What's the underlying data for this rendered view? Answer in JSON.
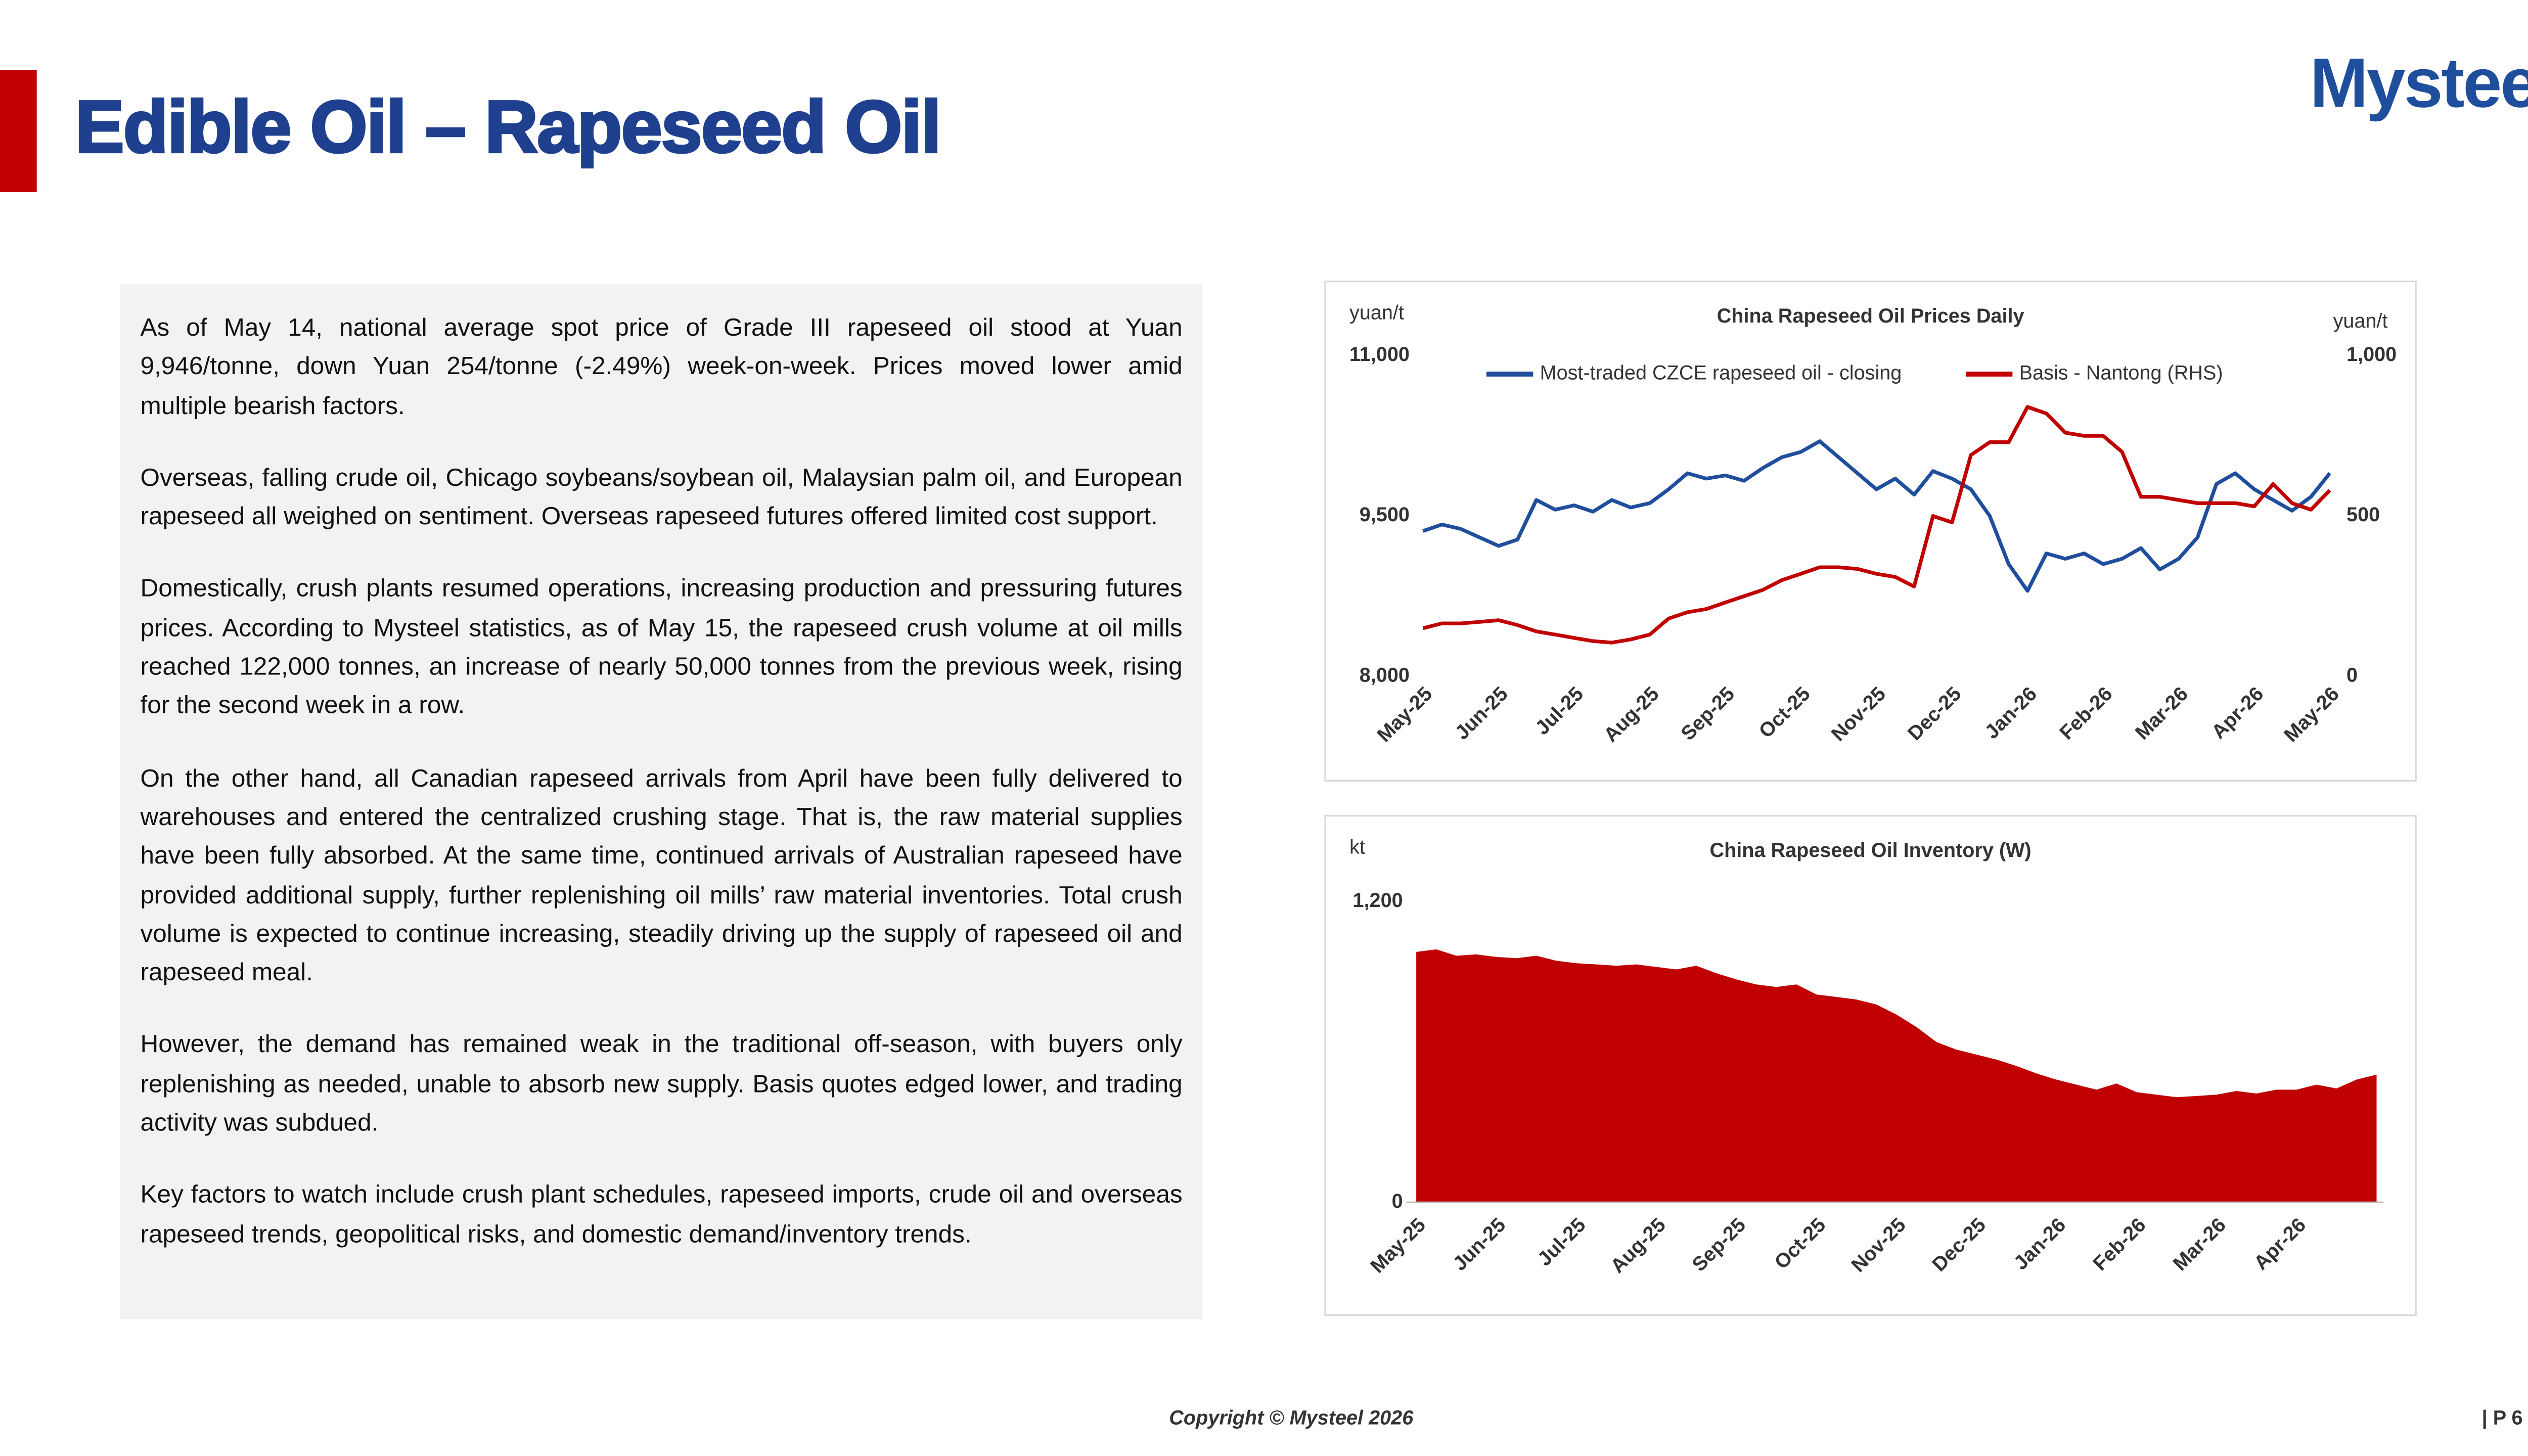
{
  "header": {
    "title": "Edible Oil – Rapeseed Oil",
    "logo": "Mysteel"
  },
  "body": {
    "paragraphs": [
      "As of May 14, national average spot price of Grade III rapeseed oil stood at Yuan 9,946/tonne, down Yuan 254/tonne (-2.49%) week-on-week. Prices moved lower amid multiple bearish factors.",
      "Overseas, falling crude oil, Chicago soybeans/soybean oil, Malaysian palm oil, and European rapeseed all weighed on sentiment. Overseas rapeseed futures offered limited cost support.",
      "Domestically, crush plants resumed operations, increasing production and pressuring futures prices. According to Mysteel statistics, as of May 15, the rapeseed crush volume at oil mills reached 122,000 tonnes, an increase of nearly 50,000 tonnes from the previous week, rising for the second week in a row.",
      "On the other hand, all Canadian rapeseed arrivals from April have been fully delivered to warehouses and entered the centralized crushing stage. That is, the raw material supplies have been fully absorbed. At the same time, continued arrivals of Australian rapeseed have provided additional supply, further replenishing oil mills’ raw material inventories. Total crush volume is expected to continue increasing, steadily driving up the supply of rapeseed oil and rapeseed meal.",
      "However, the demand has remained weak in the traditional off-season, with buyers only replenishing as needed, unable to absorb new supply. Basis quotes edged lower, and trading activity was subdued.",
      "Key factors to watch include crush plant schedules, rapeseed imports, crude oil and overseas rapeseed trends, geopolitical risks, and domestic demand/inventory trends."
    ]
  },
  "chart_data": [
    {
      "type": "line",
      "title": "China Rapeseed Oil Prices Daily",
      "ylabel": "yuan/t",
      "y2label": "yuan/t",
      "x": [
        "May-25",
        null,
        null,
        null,
        "Jun-25",
        null,
        null,
        null,
        "Jul-25",
        null,
        null,
        null,
        "Aug-25",
        null,
        null,
        null,
        "Sep-25",
        null,
        null,
        null,
        "Oct-25",
        null,
        null,
        null,
        "Nov-25",
        null,
        null,
        null,
        "Dec-25",
        null,
        null,
        null,
        "Jan-26",
        null,
        null,
        null,
        "Feb-26",
        null,
        null,
        null,
        "Mar-26",
        null,
        null,
        null,
        "Apr-26",
        null,
        null,
        null,
        "May-26"
      ],
      "ylim": [
        8000,
        11000
      ],
      "yticks": [
        {
          "value": 8000,
          "label": "8,000"
        },
        {
          "value": 9500,
          "label": "9,500"
        },
        {
          "value": 11000,
          "label": "11,000"
        }
      ],
      "y2lim": [
        0,
        1000
      ],
      "y2ticks": [
        0,
        500,
        {
          "value": 1000,
          "label": "1,000"
        }
      ],
      "series": [
        {
          "name": "Most-traded CZCE rapeseed oil - closing",
          "color": "#1f4e9c",
          "values": [
            9360,
            9420,
            9380,
            9300,
            9220,
            9280,
            9650,
            9560,
            9600,
            9540,
            9650,
            9580,
            9620,
            9750,
            9900,
            9850,
            9880,
            9830,
            9950,
            10050,
            10100,
            10200,
            10050,
            9900,
            9750,
            9850,
            9700,
            9920,
            9850,
            9750,
            9500,
            9050,
            8800,
            9150,
            9100,
            9150,
            9050,
            9100,
            9200,
            9000,
            9100,
            9300,
            9800,
            9900,
            9750,
            9650,
            9550,
            9680,
            9900
          ]
        },
        {
          "name": "Basis - Nantong (RHS)",
          "color": "#c00000",
          "axis": "y2",
          "values": [
            150,
            165,
            165,
            170,
            175,
            160,
            140,
            130,
            120,
            110,
            105,
            115,
            130,
            180,
            200,
            210,
            230,
            250,
            270,
            300,
            320,
            340,
            340,
            335,
            320,
            310,
            280,
            500,
            480,
            690,
            730,
            730,
            840,
            820,
            760,
            750,
            750,
            700,
            560,
            560,
            550,
            540,
            540,
            540,
            530,
            600,
            540,
            520,
            580
          ]
        }
      ]
    },
    {
      "type": "area",
      "title": "China Rapeseed Oil Inventory (W)",
      "ylabel": "kt",
      "color": "#c00000",
      "x": [
        "May-25",
        null,
        null,
        null,
        "Jun-25",
        null,
        null,
        null,
        "Jul-25",
        null,
        null,
        null,
        "Aug-25",
        null,
        null,
        null,
        "Sep-25",
        null,
        null,
        null,
        "Oct-25",
        null,
        null,
        null,
        "Nov-25",
        null,
        null,
        null,
        "Dec-25",
        null,
        null,
        null,
        "Jan-26",
        null,
        null,
        null,
        "Feb-26",
        null,
        null,
        null,
        "Mar-26",
        null,
        null,
        null,
        "Apr-26",
        null,
        null,
        null,
        null
      ],
      "ylim": [
        0,
        1200
      ],
      "yticks": [
        0,
        {
          "value": 1200,
          "label": "1,200"
        }
      ],
      "values": [
        1000,
        1010,
        985,
        990,
        980,
        975,
        985,
        965,
        955,
        950,
        945,
        950,
        940,
        930,
        945,
        915,
        890,
        870,
        860,
        870,
        830,
        820,
        810,
        790,
        750,
        700,
        640,
        610,
        590,
        570,
        545,
        515,
        490,
        470,
        450,
        475,
        440,
        430,
        420,
        425,
        430,
        445,
        435,
        450,
        450,
        470,
        455,
        490,
        510
      ]
    }
  ],
  "footer": {
    "copyright": "Copyright © Mysteel 2026",
    "page": "| P 6"
  }
}
